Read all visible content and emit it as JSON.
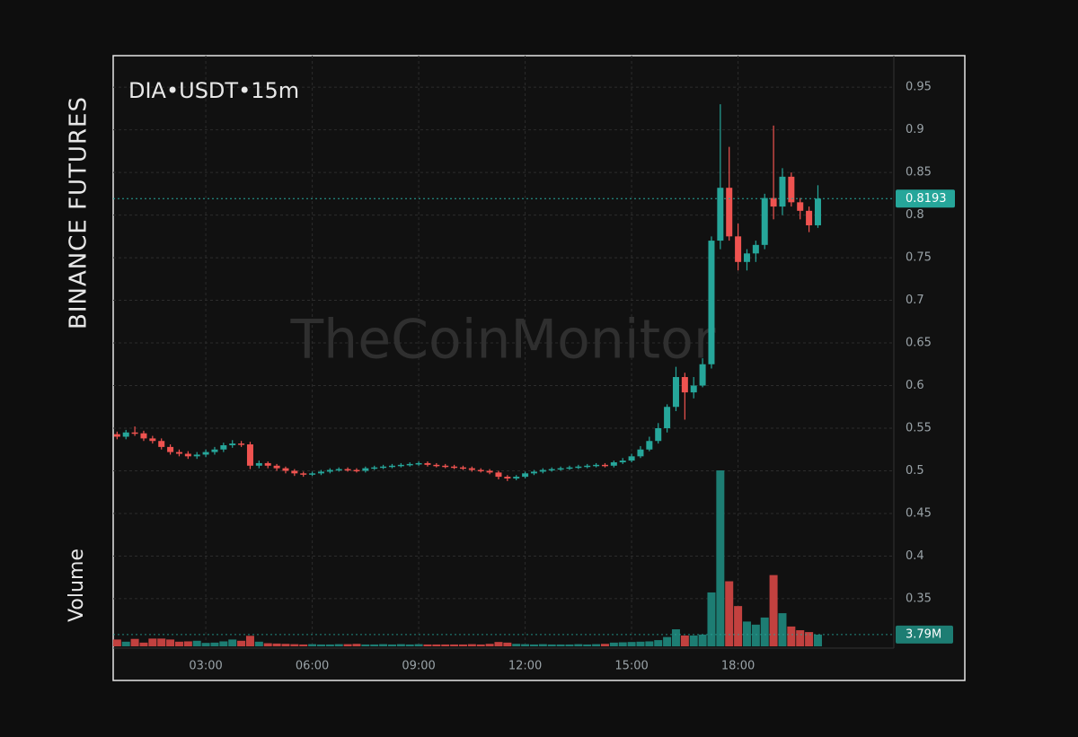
{
  "chart_data": {
    "type": "candlestick",
    "title": "DIA•USDT•15m",
    "exchange": "BINANCE FUTURES",
    "watermark": "TheCoinMonitor",
    "volume_axis_label": "Volume",
    "x": [
      0.5,
      0.75,
      1,
      1.25,
      1.5,
      1.75,
      2,
      2.25,
      2.5,
      2.75,
      3,
      3.25,
      3.5,
      3.75,
      4,
      4.25,
      4.5,
      4.75,
      5,
      5.25,
      5.5,
      5.75,
      6,
      6.25,
      6.5,
      6.75,
      7,
      7.25,
      7.5,
      7.75,
      8,
      8.25,
      8.5,
      8.75,
      9,
      9.25,
      9.5,
      9.75,
      10,
      10.25,
      10.5,
      10.75,
      11,
      11.25,
      11.5,
      11.75,
      12,
      12.25,
      12.5,
      12.75,
      13,
      13.25,
      13.5,
      13.75,
      14,
      14.25,
      14.5,
      14.75,
      15,
      15.25,
      15.5,
      15.75,
      16,
      16.25,
      16.5,
      16.75,
      17,
      17.25,
      17.5,
      17.75,
      18,
      18.25,
      18.5,
      18.75,
      19,
      19.25,
      19.5,
      19.75,
      20,
      20.25
    ],
    "open": [
      0.543,
      0.54,
      0.545,
      0.544,
      0.538,
      0.535,
      0.528,
      0.522,
      0.52,
      0.517,
      0.519,
      0.522,
      0.525,
      0.53,
      0.532,
      0.531,
      0.506,
      0.509,
      0.506,
      0.503,
      0.5,
      0.497,
      0.496,
      0.497,
      0.499,
      0.501,
      0.502,
      0.501,
      0.5,
      0.503,
      0.504,
      0.505,
      0.506,
      0.507,
      0.508,
      0.509,
      0.507,
      0.506,
      0.505,
      0.504,
      0.503,
      0.501,
      0.5,
      0.498,
      0.493,
      0.491,
      0.493,
      0.497,
      0.499,
      0.501,
      0.502,
      0.503,
      0.504,
      0.505,
      0.506,
      0.507,
      0.506,
      0.51,
      0.512,
      0.517,
      0.525,
      0.535,
      0.55,
      0.575,
      0.61,
      0.592,
      0.6,
      0.625,
      0.77,
      0.832,
      0.775,
      0.745,
      0.755,
      0.765,
      0.82,
      0.81,
      0.845,
      0.815,
      0.805,
      0.788
    ],
    "high": [
      0.546,
      0.548,
      0.552,
      0.547,
      0.541,
      0.538,
      0.531,
      0.525,
      0.523,
      0.522,
      0.525,
      0.528,
      0.533,
      0.536,
      0.535,
      0.534,
      0.512,
      0.511,
      0.508,
      0.505,
      0.502,
      0.499,
      0.499,
      0.501,
      0.503,
      0.504,
      0.504,
      0.503,
      0.505,
      0.506,
      0.507,
      0.508,
      0.509,
      0.51,
      0.511,
      0.511,
      0.509,
      0.508,
      0.507,
      0.506,
      0.505,
      0.503,
      0.502,
      0.5,
      0.495,
      0.495,
      0.499,
      0.501,
      0.503,
      0.504,
      0.505,
      0.506,
      0.507,
      0.508,
      0.509,
      0.509,
      0.512,
      0.515,
      0.52,
      0.529,
      0.54,
      0.556,
      0.578,
      0.622,
      0.615,
      0.61,
      0.632,
      0.775,
      0.93,
      0.88,
      0.79,
      0.76,
      0.77,
      0.825,
      0.905,
      0.855,
      0.85,
      0.82,
      0.81,
      0.835
    ],
    "low": [
      0.537,
      0.537,
      0.541,
      0.535,
      0.532,
      0.525,
      0.519,
      0.517,
      0.514,
      0.514,
      0.516,
      0.519,
      0.522,
      0.527,
      0.528,
      0.502,
      0.503,
      0.503,
      0.5,
      0.497,
      0.494,
      0.493,
      0.494,
      0.495,
      0.497,
      0.499,
      0.499,
      0.498,
      0.498,
      0.501,
      0.502,
      0.503,
      0.504,
      0.505,
      0.506,
      0.505,
      0.504,
      0.503,
      0.502,
      0.501,
      0.499,
      0.498,
      0.496,
      0.49,
      0.488,
      0.489,
      0.491,
      0.495,
      0.497,
      0.499,
      0.5,
      0.501,
      0.502,
      0.503,
      0.504,
      0.504,
      0.504,
      0.508,
      0.51,
      0.515,
      0.523,
      0.532,
      0.545,
      0.57,
      0.56,
      0.585,
      0.598,
      0.62,
      0.76,
      0.77,
      0.735,
      0.735,
      0.745,
      0.76,
      0.795,
      0.8,
      0.81,
      0.795,
      0.78,
      0.785
    ],
    "close": [
      0.54,
      0.545,
      0.544,
      0.538,
      0.535,
      0.528,
      0.522,
      0.52,
      0.517,
      0.519,
      0.522,
      0.525,
      0.53,
      0.532,
      0.531,
      0.506,
      0.509,
      0.506,
      0.503,
      0.5,
      0.497,
      0.496,
      0.497,
      0.499,
      0.501,
      0.502,
      0.501,
      0.5,
      0.503,
      0.504,
      0.505,
      0.506,
      0.507,
      0.508,
      0.509,
      0.507,
      0.506,
      0.505,
      0.504,
      0.503,
      0.501,
      0.5,
      0.498,
      0.493,
      0.491,
      0.493,
      0.497,
      0.499,
      0.501,
      0.502,
      0.503,
      0.504,
      0.505,
      0.506,
      0.507,
      0.506,
      0.51,
      0.512,
      0.517,
      0.525,
      0.535,
      0.55,
      0.575,
      0.61,
      0.592,
      0.6,
      0.625,
      0.77,
      0.832,
      0.775,
      0.745,
      0.755,
      0.765,
      0.82,
      0.81,
      0.845,
      0.815,
      0.805,
      0.788,
      0.8193
    ],
    "volume": {
      "values": [
        2.2,
        1.5,
        2.4,
        1.2,
        2.5,
        2.5,
        2.2,
        1.5,
        1.6,
        1.8,
        1.1,
        1.2,
        1.6,
        2.2,
        1.8,
        3.4,
        1.5,
        1.0,
        0.9,
        0.8,
        0.7,
        0.6,
        0.7,
        0.6,
        0.6,
        0.7,
        0.7,
        0.8,
        0.6,
        0.6,
        0.7,
        0.6,
        0.7,
        0.6,
        0.7,
        0.6,
        0.6,
        0.6,
        0.6,
        0.6,
        0.7,
        0.6,
        0.8,
        1.4,
        1.2,
        0.8,
        0.7,
        0.6,
        0.7,
        0.6,
        0.6,
        0.6,
        0.7,
        0.6,
        0.7,
        0.8,
        1.2,
        1.3,
        1.4,
        1.5,
        1.6,
        2.0,
        3.0,
        5.5,
        3.5,
        3.5,
        3.8,
        17.4,
        56.8,
        21.0,
        13.0,
        8.0,
        7.0,
        9.3,
        23.0,
        10.7,
        6.4,
        5.2,
        4.6,
        3.79
      ],
      "value_labels": [
        null,
        null,
        null,
        null,
        null,
        null,
        null,
        null,
        null,
        null,
        null,
        null,
        null,
        null,
        null,
        null,
        null,
        null,
        null,
        null,
        null,
        null,
        null,
        null,
        null,
        null,
        null,
        null,
        null,
        null,
        null,
        null,
        null,
        null,
        null,
        null,
        null,
        null,
        null,
        null,
        null,
        null,
        null,
        null,
        null,
        null,
        null,
        null,
        null,
        null,
        null,
        null,
        null,
        null,
        null,
        null,
        null,
        null,
        null,
        null,
        null,
        null,
        null,
        null,
        null,
        null,
        null,
        null,
        null,
        null,
        null,
        null,
        null,
        null,
        null,
        null,
        null,
        null,
        null,
        "3.79M"
      ]
    },
    "up_color": "#26a69a",
    "down_color": "#ef5350",
    "volume_up_color": "#1d7d73",
    "volume_down_color": "#c2413f",
    "xlim": [
      0.39,
      22.39
    ],
    "xticks": [
      {
        "value": 3,
        "label": "03:00"
      },
      {
        "value": 6,
        "label": "06:00"
      },
      {
        "value": 9,
        "label": "09:00"
      },
      {
        "value": 12,
        "label": "12:00"
      },
      {
        "value": 15,
        "label": "15:00"
      },
      {
        "value": 18,
        "label": "18:00"
      }
    ],
    "ylim": [
      0.292,
      0.987
    ],
    "yticks": [
      0.35,
      0.4,
      0.45,
      0.5,
      0.55,
      0.6,
      0.65,
      0.7,
      0.75,
      0.8,
      0.85,
      0.9,
      0.95
    ],
    "grid": true
  }
}
